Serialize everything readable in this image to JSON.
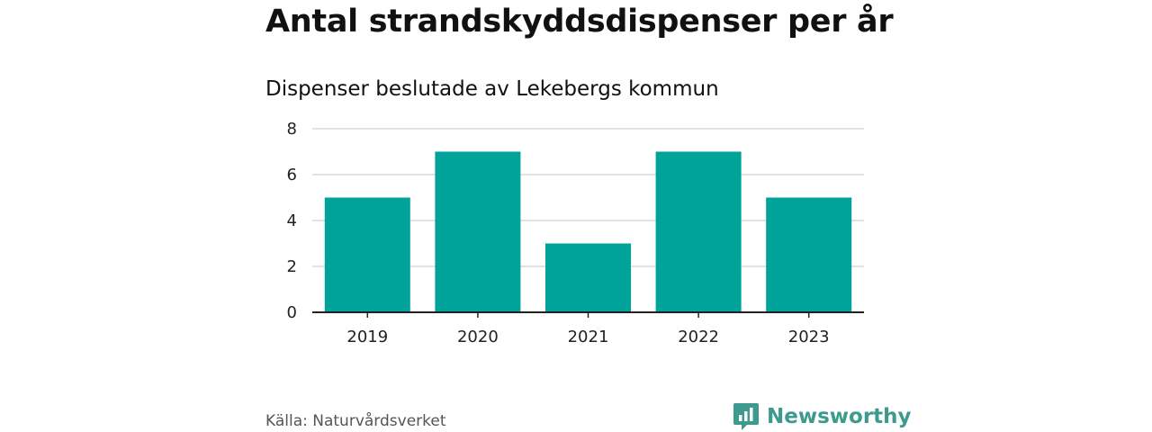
{
  "title": "Antal strandskyddsdispenser per år",
  "subtitle": "Dispenser beslutade av Lekebergs kommun",
  "source": "Källa: Naturvårdsverket",
  "brand": {
    "name": "Newsworthy",
    "icon": "newsworthy-logo-icon",
    "color": "#3d9a8f"
  },
  "colors": {
    "bar": "#00a39a",
    "grid": "#d9d9d9",
    "axis": "#222222"
  },
  "chart_data": {
    "type": "bar",
    "title": "Antal strandskyddsdispenser per år",
    "subtitle": "Dispenser beslutade av Lekebergs kommun",
    "categories": [
      "2019",
      "2020",
      "2021",
      "2022",
      "2023"
    ],
    "values": [
      5,
      7,
      3,
      7,
      5
    ],
    "xlabel": "",
    "ylabel": "",
    "ylim": [
      0,
      8
    ],
    "yticks": [
      "0",
      "2",
      "4",
      "6",
      "8"
    ],
    "grid": true,
    "legend": "none"
  }
}
